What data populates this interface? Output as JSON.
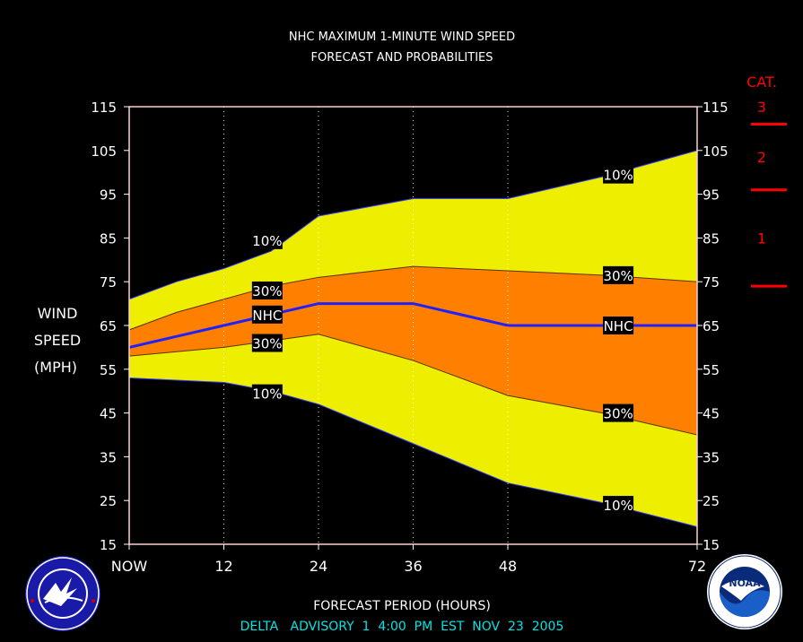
{
  "chart_data": {
    "type": "area",
    "title": "NHC MAXIMUM 1-MINUTE WIND SPEED",
    "subtitle": "FORECAST AND PROBABILITIES",
    "xlabel": "FORECAST PERIOD (HOURS)",
    "ylabel_lines": [
      "WIND",
      "SPEED",
      "(MPH)"
    ],
    "footer": "DELTA   ADVISORY  1  4:00  PM  EST  NOV  23  2005",
    "x_ticks": [
      0,
      12,
      24,
      36,
      48,
      72
    ],
    "x_tick_labels": [
      "NOW",
      "12",
      "24",
      "36",
      "48",
      "72"
    ],
    "xlim": [
      0,
      72
    ],
    "ylim": [
      15,
      115
    ],
    "y_ticks": [
      15,
      25,
      35,
      45,
      55,
      65,
      75,
      85,
      95,
      105,
      115
    ],
    "x": [
      0,
      6,
      12,
      18,
      24,
      36,
      48,
      60,
      72
    ],
    "bands": [
      {
        "name": "10%",
        "color": "#eeee00",
        "upper": [
          71,
          75,
          78,
          82,
          90,
          94,
          94,
          99,
          105
        ],
        "lower": [
          53,
          52.5,
          52,
          50,
          47,
          38,
          29,
          24.5,
          19
        ]
      },
      {
        "name": "30%",
        "color": "#ff7f00",
        "upper": [
          64,
          68,
          71,
          74,
          76,
          78.5,
          77.5,
          76.5,
          75
        ],
        "lower": [
          58,
          59,
          60,
          61.5,
          63,
          57,
          49,
          45,
          40
        ]
      }
    ],
    "series": [
      {
        "name": "NHC",
        "color": "#2020ff",
        "values": [
          60,
          62.5,
          65,
          67.5,
          70,
          70,
          65,
          65,
          65
        ]
      }
    ],
    "annotations": [
      {
        "text": "10%",
        "x": 17.5,
        "y": 84.5
      },
      {
        "text": "30%",
        "x": 17.5,
        "y": 73
      },
      {
        "text": "NHC",
        "x": 17.5,
        "y": 67.5
      },
      {
        "text": "30%",
        "x": 17.5,
        "y": 61
      },
      {
        "text": "10%",
        "x": 17.5,
        "y": 49.5
      },
      {
        "text": "10%",
        "x": 62,
        "y": 99.5
      },
      {
        "text": "30%",
        "x": 62,
        "y": 76.5
      },
      {
        "text": "NHC",
        "x": 62,
        "y": 65
      },
      {
        "text": "30%",
        "x": 62,
        "y": 45
      },
      {
        "text": "10%",
        "x": 62,
        "y": 24
      }
    ],
    "grid": "vertical dotted",
    "category_scale": {
      "title": "CAT.",
      "color": "#ff0000",
      "thresholds": [
        74,
        96,
        111
      ],
      "labels": [
        {
          "text": "1",
          "y": 85
        },
        {
          "text": "2",
          "y": 103.5
        },
        {
          "text": "3",
          "y": 115
        }
      ]
    }
  },
  "logos": {
    "left": {
      "name": "NATIONAL WEATHER SERVICE",
      "colors": [
        "#1a1aa8",
        "#ffffff",
        "#cc0000"
      ]
    },
    "right": {
      "name": "NOAA",
      "colors": [
        "#1a5fc8",
        "#ffffff",
        "#0a2a7a"
      ]
    }
  }
}
